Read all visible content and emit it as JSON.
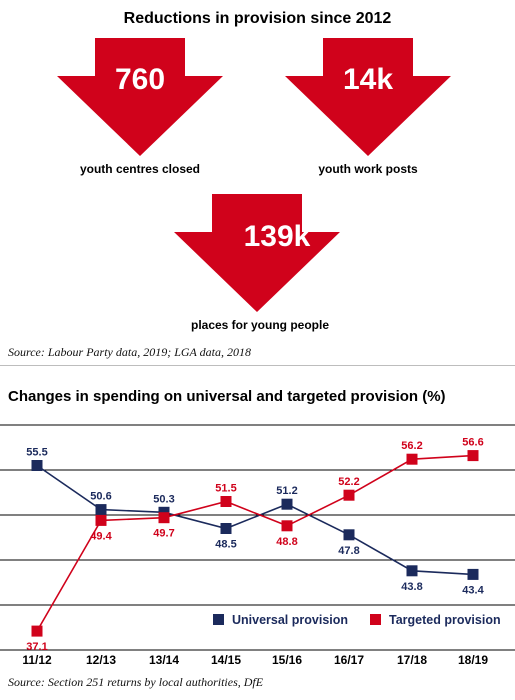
{
  "infographic": {
    "title": "Reductions in provision since 2012",
    "stats": [
      {
        "value": "760",
        "label": "youth centres closed"
      },
      {
        "value": "14k",
        "label": "youth work posts"
      },
      {
        "value": "139k",
        "label": "places for young people"
      }
    ],
    "source": "Source: Labour Party data, 2019; LGA data, 2018",
    "arrow_color": "#d0021b"
  },
  "chart_data": {
    "type": "line",
    "title": "Changes in spending on universal  and targeted provision (%)",
    "categories": [
      "11/12",
      "12/13",
      "13/14",
      "14/15",
      "15/16",
      "16/17",
      "17/18",
      "18/19"
    ],
    "series": [
      {
        "name": "Universal provision",
        "color": "#1b2a5c",
        "values": [
          55.5,
          50.6,
          50.3,
          48.5,
          51.2,
          47.8,
          43.8,
          43.4
        ]
      },
      {
        "name": "Targeted provision",
        "color": "#d0021b",
        "values": [
          37.1,
          49.4,
          49.7,
          51.5,
          48.8,
          52.2,
          56.2,
          56.6
        ]
      }
    ],
    "ylim": [
      35,
      60
    ],
    "gridlines": [
      40,
      45,
      50,
      55
    ],
    "legend_position": "bottom-right",
    "source": "Source: Section 251 returns by local authorities, DfE"
  }
}
